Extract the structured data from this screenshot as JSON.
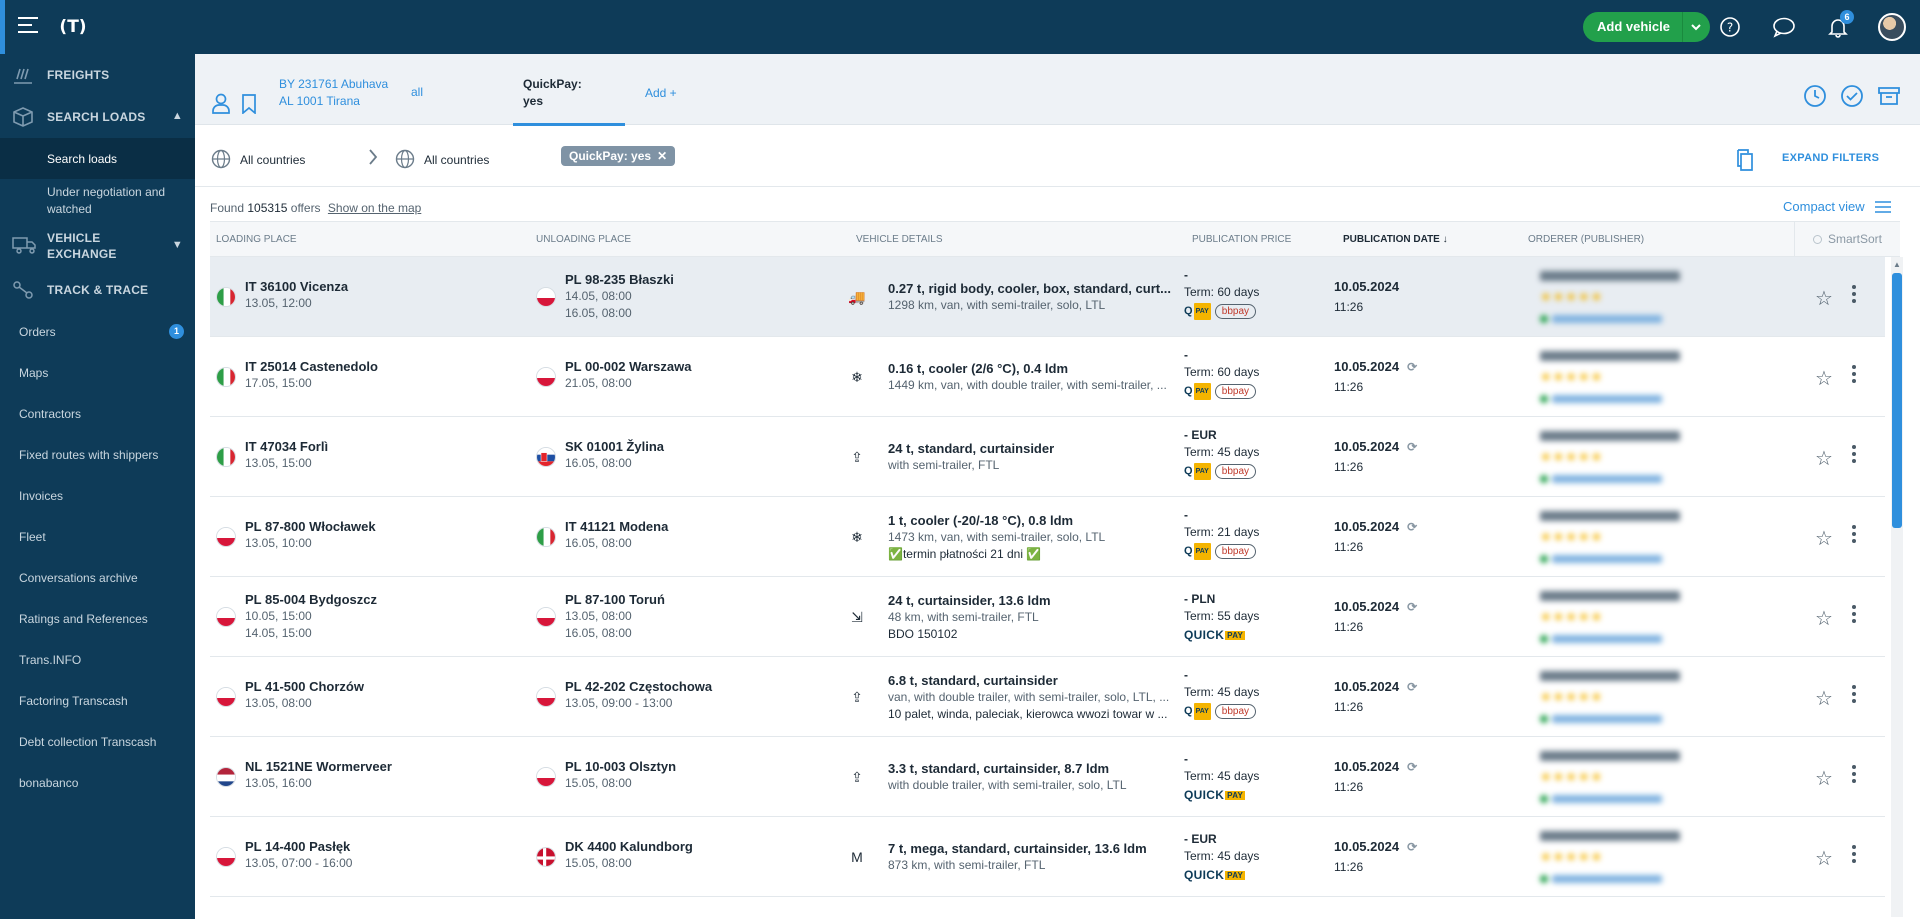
{
  "topbar": {
    "add_vehicle": "Add vehicle",
    "notifications_count": "6",
    "logo": "(T)"
  },
  "sidebar": {
    "freights": "FREIGHTS",
    "search_loads": "SEARCH LOADS",
    "search_loads_sub": "Search loads",
    "under_negotiation": "Under negotiation and watched",
    "vehicle_exchange": "VEHICLE EXCHANGE",
    "track_trace": "TRACK & TRACE",
    "orders": "Orders",
    "orders_badge": "1",
    "maps": "Maps",
    "contractors": "Contractors",
    "fixed_routes": "Fixed routes with shippers",
    "invoices": "Invoices",
    "fleet": "Fleet",
    "conversations": "Conversations archive",
    "ratings": "Ratings and References",
    "transinfo": "Trans.INFO",
    "factoring": "Factoring Transcash",
    "debt": "Debt collection Transcash",
    "bonabanco": "bonabanco"
  },
  "tabs": {
    "route_line1": "BY 231761 Abuhava",
    "route_line2": "AL 1001 Tirana",
    "all": "all",
    "quickpay_l1": "QuickPay:",
    "quickpay_l2": "yes",
    "add": "Add +"
  },
  "filters": {
    "from": "All countries",
    "to": "All countries",
    "chip": "QuickPay: yes",
    "chip_close": "✕",
    "expand": "EXPAND FILTERS"
  },
  "results": {
    "found_label": "Found",
    "count": "105315",
    "offers": "offers",
    "show_map": "Show on the map",
    "compact": "Compact view"
  },
  "columns": {
    "loading": "LOADING PLACE",
    "unloading": "UNLOADING PLACE",
    "vehicle": "VEHICLE DETAILS",
    "price": "PUBLICATION PRICE",
    "date": "PUBLICATION DATE ↓",
    "orderer": "ORDERER (PUBLISHER)",
    "smartsort": "SmartSort"
  },
  "rows": [
    {
      "lf": "it",
      "lcity": "IT 36100 Vicenza",
      "ld1": "13.05, 12:00",
      "ld2": "",
      "uf": "pl",
      "ucity": "PL 98-235 Błaszki",
      "ud1": "14.05, 08:00",
      "ud2": "16.05, 08:00",
      "vicon": "truck",
      "vt": "0.27 t, rigid body, cooler, box, standard, curt...",
      "vs": "1298 km, van, with semi-trailer, solo, LTL",
      "vn": "",
      "price": "-",
      "term": "Term: 60 days",
      "pay": "qb",
      "date": "10.05.2024",
      "time": "11:26",
      "refresh": false
    },
    {
      "lf": "it",
      "lcity": "IT 25014 Castenedolo",
      "ld1": "17.05, 15:00",
      "ld2": "",
      "uf": "pl",
      "ucity": "PL 00-002 Warszawa",
      "ud1": "21.05, 08:00",
      "ud2": "",
      "vicon": "snow",
      "vt": "0.16 t, cooler (2/6 °C), 0.4 ldm",
      "vs": "1449 km, van, with double trailer, with semi-trailer, ...",
      "vn": "",
      "price": "-",
      "term": "Term: 60 days",
      "pay": "qb",
      "date": "10.05.2024",
      "time": "11:26",
      "refresh": true
    },
    {
      "lf": "it",
      "lcity": "IT 47034 Forlì",
      "ld1": "13.05, 15:00",
      "ld2": "",
      "uf": "sk",
      "ucity": "SK 01001 Žylina",
      "ud1": "16.05, 08:00",
      "ud2": "",
      "vicon": "up",
      "vt": "24 t, standard, curtainsider",
      "vs": "with semi-trailer, FTL",
      "vn": "",
      "price": "- EUR",
      "term": "Term: 45 days",
      "pay": "qb",
      "date": "10.05.2024",
      "time": "11:26",
      "refresh": true
    },
    {
      "lf": "pl",
      "lcity": "PL 87-800 Włocławek",
      "ld1": "13.05, 10:00",
      "ld2": "",
      "uf": "it",
      "ucity": "IT 41121 Modena",
      "ud1": "16.05, 08:00",
      "ud2": "",
      "vicon": "snow",
      "vt": "1 t, cooler (-20/-18 °C), 0.8 ldm",
      "vs": "1473 km, van, with semi-trailer, solo, LTL",
      "vn": "✅termin płatności 21 dni ✅",
      "price": "-",
      "term": "Term: 21 days",
      "pay": "qb",
      "date": "10.05.2024",
      "time": "11:26",
      "refresh": true
    },
    {
      "lf": "pl",
      "lcity": "PL 85-004 Bydgoszcz",
      "ld1": "10.05, 15:00",
      "ld2": "14.05, 15:00",
      "uf": "pl",
      "ucity": "PL 87-100 Toruń",
      "ud1": "13.05, 08:00",
      "ud2": "16.05, 08:00",
      "vicon": "side",
      "vt": "24 t, curtainsider, 13.6 ldm",
      "vs": "48 km, with semi-trailer, FTL",
      "vn": "BDO 150102",
      "price": "- PLN",
      "term": "Term: 55 days",
      "pay": "quick",
      "date": "10.05.2024",
      "time": "11:26",
      "refresh": true
    },
    {
      "lf": "pl",
      "lcity": "PL 41-500 Chorzów",
      "ld1": "13.05, 08:00",
      "ld2": "",
      "uf": "pl",
      "ucity": "PL 42-202 Częstochowa",
      "ud1": "13.05, 09:00 - 13:00",
      "ud2": "",
      "vicon": "up",
      "vt": "6.8 t, standard, curtainsider",
      "vs": "van, with double trailer, with semi-trailer, solo, LTL, ...",
      "vn": "10 palet, winda, paleciak, kierowca wwozi towar w ...",
      "price": "-",
      "term": "Term: 45 days",
      "pay": "qb",
      "date": "10.05.2024",
      "time": "11:26",
      "refresh": true
    },
    {
      "lf": "nl",
      "lcity": "NL 1521NE Wormerveer",
      "ld1": "13.05, 16:00",
      "ld2": "",
      "uf": "pl",
      "ucity": "PL 10-003 Olsztyn",
      "ud1": "15.05, 08:00",
      "ud2": "",
      "vicon": "up",
      "vt": "3.3 t, standard, curtainsider, 8.7 ldm",
      "vs": "with double trailer, with semi-trailer, solo, LTL",
      "vn": "",
      "price": "-",
      "term": "Term: 45 days",
      "pay": "quick",
      "date": "10.05.2024",
      "time": "11:26",
      "refresh": true
    },
    {
      "lf": "pl",
      "lcity": "PL 14-400 Pasłęk",
      "ld1": "13.05, 07:00 - 16:00",
      "ld2": "",
      "uf": "dk",
      "ucity": "DK 4400 Kalundborg",
      "ud1": "15.05, 08:00",
      "ud2": "",
      "vicon": "mega",
      "vt": "7 t, mega, standard, curtainsider, 13.6 ldm",
      "vs": "873 km, with semi-trailer, FTL",
      "vn": "",
      "price": "- EUR",
      "term": "Term: 45 days",
      "pay": "quick",
      "date": "10.05.2024",
      "time": "11:26",
      "refresh": true
    }
  ],
  "pay_labels": {
    "q": "Q",
    "pay": "PAY",
    "bbpay": "bbpay",
    "quick": "QUICK"
  },
  "icons": {
    "snow": "❄",
    "up": "⇪",
    "side": "⇲",
    "mega": "M",
    "truck": "🚚",
    "refresh": "⟳",
    "star": "☆"
  }
}
